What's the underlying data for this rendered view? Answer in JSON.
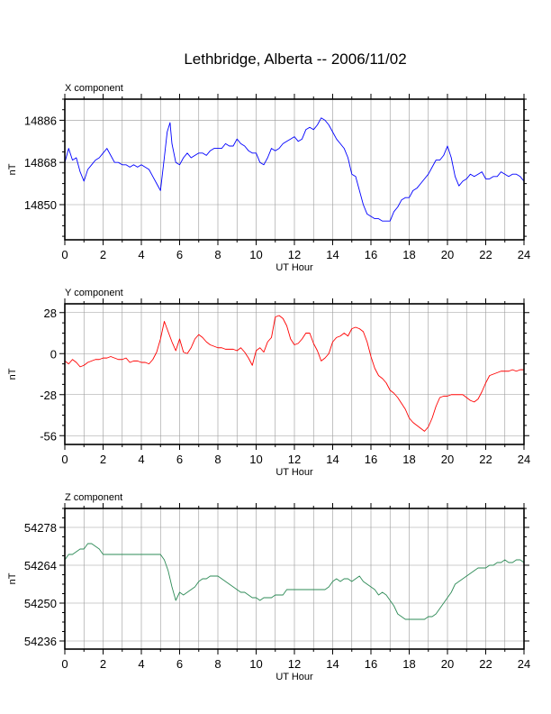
{
  "page": {
    "title": "Lethbridge, Alberta -- 2006/11/02"
  },
  "chart_data": [
    {
      "type": "line",
      "title": "X component",
      "xlabel": "UT Hour",
      "ylabel": "nT",
      "xlim": [
        0,
        24
      ],
      "ylim": [
        14835,
        14895
      ],
      "xticks": [
        0,
        2,
        4,
        6,
        8,
        10,
        12,
        14,
        16,
        18,
        20,
        22,
        24
      ],
      "yticks": [
        14850,
        14868,
        14886
      ],
      "grid": true,
      "color": "#0000ff",
      "series": [
        {
          "x": [
            0,
            0.2,
            0.4,
            0.6,
            0.8,
            1.0,
            1.2,
            1.4,
            1.6,
            1.8,
            2.0,
            2.2,
            2.4,
            2.6,
            2.8,
            3.0,
            3.2,
            3.4,
            3.6,
            3.8,
            4.0,
            4.2,
            4.4,
            4.6,
            4.8,
            5.0,
            5.2,
            5.35,
            5.5,
            5.6,
            5.8,
            6.0,
            6.2,
            6.4,
            6.6,
            6.8,
            7.0,
            7.2,
            7.4,
            7.6,
            7.8,
            8.0,
            8.2,
            8.4,
            8.6,
            8.8,
            9.0,
            9.2,
            9.4,
            9.6,
            9.8,
            10.0,
            10.2,
            10.4,
            10.6,
            10.8,
            11.0,
            11.2,
            11.4,
            11.6,
            11.8,
            12.0,
            12.2,
            12.4,
            12.6,
            12.8,
            13.0,
            13.2,
            13.4,
            13.6,
            13.8,
            14.0,
            14.2,
            14.4,
            14.6,
            14.8,
            15.0,
            15.2,
            15.4,
            15.6,
            15.8,
            16.0,
            16.2,
            16.4,
            16.6,
            16.8,
            17.0,
            17.2,
            17.4,
            17.6,
            17.8,
            18.0,
            18.2,
            18.4,
            18.6,
            18.8,
            19.0,
            19.2,
            19.4,
            19.6,
            19.8,
            20.0,
            20.2,
            20.4,
            20.6,
            20.8,
            21.0,
            21.2,
            21.4,
            21.6,
            21.8,
            22.0,
            22.2,
            22.4,
            22.6,
            22.8,
            23.0,
            23.2,
            23.4,
            23.6,
            23.8,
            24.0
          ],
          "values": [
            14868,
            14874,
            14869,
            14870,
            14864,
            14860,
            14865,
            14867,
            14869,
            14870,
            14872,
            14874,
            14871,
            14868,
            14868,
            14867,
            14867,
            14866,
            14867,
            14866,
            14867,
            14866,
            14865,
            14862,
            14859,
            14856,
            14870,
            14881,
            14885,
            14876,
            14868,
            14867,
            14870,
            14872,
            14870,
            14871,
            14872,
            14872,
            14871,
            14873,
            14874,
            14874,
            14874,
            14876,
            14875,
            14875,
            14878,
            14876,
            14875,
            14873,
            14872,
            14872,
            14868,
            14867,
            14870,
            14874,
            14873,
            14874,
            14876,
            14877,
            14878,
            14879,
            14877,
            14878,
            14882,
            14883,
            14882,
            14884,
            14887,
            14886,
            14884,
            14881,
            14878,
            14876,
            14874,
            14870,
            14863,
            14862,
            14856,
            14850,
            14846,
            14845,
            14844,
            14844,
            14843,
            14843,
            14843,
            14847,
            14849,
            14852,
            14853,
            14853,
            14856,
            14857,
            14859,
            14861,
            14863,
            14866,
            14869,
            14869,
            14871,
            14875,
            14870,
            14862,
            14858,
            14860,
            14861,
            14863,
            14862,
            14863,
            14864,
            14861,
            14861,
            14862,
            14862,
            14864,
            14863,
            14862,
            14863,
            14863,
            14862,
            14860
          ]
        }
      ]
    },
    {
      "type": "line",
      "title": "Y component",
      "xlabel": "UT Hour",
      "ylabel": "nT",
      "xlim": [
        0,
        24
      ],
      "ylim": [
        -62,
        34
      ],
      "xticks": [
        0,
        2,
        4,
        6,
        8,
        10,
        12,
        14,
        16,
        18,
        20,
        22,
        24
      ],
      "yticks": [
        -56,
        -28,
        0,
        28
      ],
      "grid": true,
      "color": "#ff0000",
      "series": [
        {
          "x": [
            0,
            0.2,
            0.4,
            0.6,
            0.8,
            1.0,
            1.2,
            1.4,
            1.6,
            1.8,
            2.0,
            2.2,
            2.4,
            2.6,
            2.8,
            3.0,
            3.2,
            3.4,
            3.6,
            3.8,
            4.0,
            4.2,
            4.4,
            4.6,
            4.8,
            5.0,
            5.2,
            5.4,
            5.6,
            5.8,
            6.0,
            6.2,
            6.4,
            6.6,
            6.8,
            7.0,
            7.2,
            7.4,
            7.6,
            7.8,
            8.0,
            8.2,
            8.4,
            8.6,
            8.8,
            9.0,
            9.2,
            9.4,
            9.6,
            9.8,
            10.0,
            10.2,
            10.4,
            10.6,
            10.8,
            11.0,
            11.2,
            11.4,
            11.6,
            11.8,
            12.0,
            12.2,
            12.4,
            12.6,
            12.8,
            13.0,
            13.2,
            13.4,
            13.6,
            13.8,
            14.0,
            14.2,
            14.4,
            14.6,
            14.8,
            15.0,
            15.2,
            15.4,
            15.6,
            15.8,
            16.0,
            16.2,
            16.4,
            16.6,
            16.8,
            17.0,
            17.2,
            17.4,
            17.6,
            17.8,
            18.0,
            18.2,
            18.4,
            18.6,
            18.8,
            19.0,
            19.2,
            19.4,
            19.6,
            19.8,
            20.0,
            20.2,
            20.4,
            20.6,
            20.8,
            21.0,
            21.2,
            21.4,
            21.6,
            21.8,
            22.0,
            22.2,
            22.4,
            22.6,
            22.8,
            23.0,
            23.2,
            23.4,
            23.6,
            23.8,
            24.0
          ],
          "values": [
            -5,
            -7,
            -4,
            -6,
            -9,
            -8,
            -6,
            -5,
            -4,
            -4,
            -3,
            -3,
            -2,
            -3,
            -4,
            -4,
            -3,
            -6,
            -5,
            -5,
            -6,
            -6,
            -7,
            -4,
            1,
            10,
            22,
            15,
            8,
            2,
            10,
            1,
            0,
            4,
            10,
            13,
            11,
            8,
            6,
            5,
            4,
            4,
            3,
            3,
            3,
            2,
            4,
            1,
            -3,
            -8,
            2,
            4,
            1,
            8,
            11,
            25,
            26,
            24,
            19,
            10,
            6,
            7,
            10,
            14,
            14,
            7,
            2,
            -5,
            -3,
            0,
            8,
            11,
            12,
            14,
            12,
            17,
            18,
            17,
            15,
            8,
            -2,
            -10,
            -15,
            -17,
            -20,
            -25,
            -27,
            -30,
            -34,
            -38,
            -44,
            -47,
            -49,
            -51,
            -53,
            -50,
            -44,
            -36,
            -30,
            -29,
            -29,
            -28,
            -28,
            -28,
            -28,
            -30,
            -32,
            -33,
            -31,
            -26,
            -20,
            -15,
            -14,
            -13,
            -12,
            -12,
            -12,
            -11,
            -12,
            -11,
            -11
          ]
        }
      ]
    },
    {
      "type": "line",
      "title": "Z component",
      "xlabel": "UT Hour",
      "ylabel": "nT",
      "xlim": [
        0,
        24
      ],
      "ylim": [
        54233,
        54285
      ],
      "xticks": [
        0,
        2,
        4,
        6,
        8,
        10,
        12,
        14,
        16,
        18,
        20,
        22,
        24
      ],
      "yticks": [
        54236,
        54250,
        54264,
        54278
      ],
      "grid": true,
      "color": "#2e8b57",
      "series": [
        {
          "x": [
            0,
            0.2,
            0.4,
            0.6,
            0.8,
            1.0,
            1.2,
            1.4,
            1.6,
            1.8,
            2.0,
            2.2,
            2.4,
            2.6,
            2.8,
            3.0,
            3.2,
            3.4,
            3.6,
            3.8,
            4.0,
            4.2,
            4.4,
            4.6,
            4.8,
            5.0,
            5.2,
            5.4,
            5.6,
            5.8,
            6.0,
            6.2,
            6.4,
            6.6,
            6.8,
            7.0,
            7.2,
            7.4,
            7.6,
            7.8,
            8.0,
            8.2,
            8.4,
            8.6,
            8.8,
            9.0,
            9.2,
            9.4,
            9.6,
            9.8,
            10.0,
            10.2,
            10.4,
            10.6,
            10.8,
            11.0,
            11.2,
            11.4,
            11.6,
            11.8,
            12.0,
            12.2,
            12.4,
            12.6,
            12.8,
            13.0,
            13.2,
            13.4,
            13.6,
            13.8,
            14.0,
            14.2,
            14.4,
            14.6,
            14.8,
            15.0,
            15.2,
            15.4,
            15.6,
            15.8,
            16.0,
            16.2,
            16.4,
            16.6,
            16.8,
            17.0,
            17.2,
            17.4,
            17.6,
            17.8,
            18.0,
            18.2,
            18.4,
            18.6,
            18.8,
            19.0,
            19.2,
            19.4,
            19.6,
            19.8,
            20.0,
            20.2,
            20.4,
            20.6,
            20.8,
            21.0,
            21.2,
            21.4,
            21.6,
            21.8,
            22.0,
            22.2,
            22.4,
            22.6,
            22.8,
            23.0,
            23.2,
            23.4,
            23.6,
            23.8,
            24.0
          ],
          "values": [
            54266,
            54268,
            54268,
            54269,
            54270,
            54270,
            54272,
            54272,
            54271,
            54270,
            54268,
            54268,
            54268,
            54268,
            54268,
            54268,
            54268,
            54268,
            54268,
            54268,
            54268,
            54268,
            54268,
            54268,
            54268,
            54268,
            54266,
            54262,
            54256,
            54251,
            54254,
            54253,
            54254,
            54255,
            54256,
            54258,
            54259,
            54259,
            54260,
            54260,
            54260,
            54259,
            54258,
            54257,
            54256,
            54255,
            54254,
            54254,
            54253,
            54252,
            54252,
            54251,
            54252,
            54252,
            54252,
            54253,
            54253,
            54253,
            54255,
            54255,
            54255,
            54255,
            54255,
            54255,
            54255,
            54255,
            54255,
            54255,
            54255,
            54256,
            54258,
            54259,
            54258,
            54259,
            54259,
            54258,
            54259,
            54260,
            54258,
            54257,
            54256,
            54255,
            54253,
            54254,
            54253,
            54251,
            54249,
            54246,
            54245,
            54244,
            54244,
            54244,
            54244,
            54244,
            54244,
            54245,
            54245,
            54246,
            54248,
            54250,
            54252,
            54254,
            54257,
            54258,
            54259,
            54260,
            54261,
            54262,
            54263,
            54263,
            54263,
            54264,
            54264,
            54265,
            54265,
            54266,
            54265,
            54265,
            54266,
            54266,
            54265
          ]
        }
      ]
    }
  ]
}
